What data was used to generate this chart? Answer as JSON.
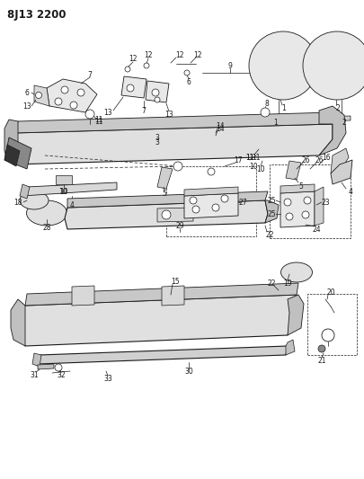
{
  "title": "8J13 2200",
  "bg_color": "#ffffff",
  "line_color": "#1a1a1a",
  "fig_width": 4.06,
  "fig_height": 5.33,
  "dpi": 100
}
